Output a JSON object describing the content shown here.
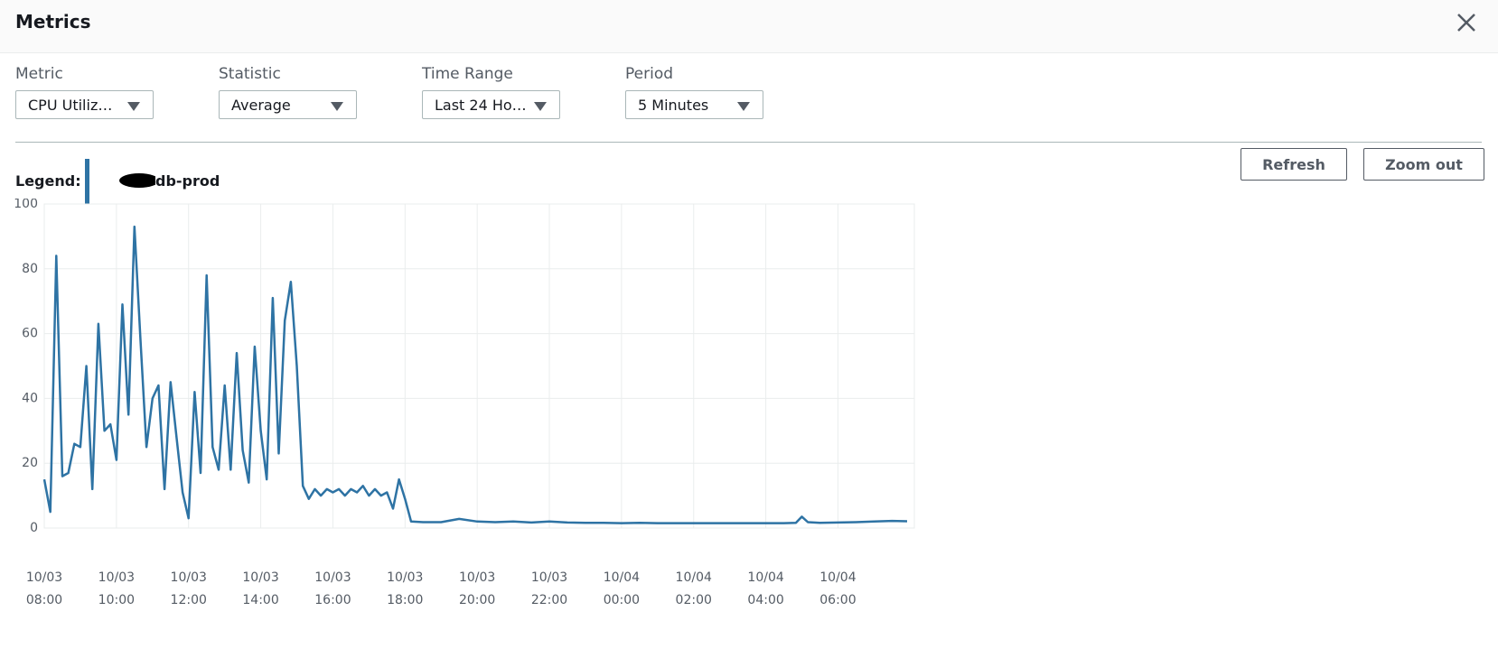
{
  "header": {
    "title": "Metrics"
  },
  "controls": [
    {
      "label": "Metric",
      "value": "CPU Utiliz…"
    },
    {
      "label": "Statistic",
      "value": "Average"
    },
    {
      "label": "Time Range",
      "value": "Last 24 Ho…"
    },
    {
      "label": "Period",
      "value": "5 Minutes"
    }
  ],
  "buttons": [
    "Refresh",
    "Zoom out"
  ],
  "legend_label": "Legend:",
  "chart_data": {
    "type": "line",
    "x": [
      "10/03 08:00",
      "10/03 08:10",
      "10/03 08:20",
      "10/03 08:30",
      "10/03 08:40",
      "10/03 08:50",
      "10/03 09:00",
      "10/03 09:10",
      "10/03 09:20",
      "10/03 09:30",
      "10/03 09:40",
      "10/03 09:50",
      "10/03 10:00",
      "10/03 10:10",
      "10/03 10:20",
      "10/03 10:30",
      "10/03 10:40",
      "10/03 10:50",
      "10/03 11:00",
      "10/03 11:10",
      "10/03 11:20",
      "10/03 11:30",
      "10/03 11:40",
      "10/03 11:50",
      "10/03 12:00",
      "10/03 12:10",
      "10/03 12:20",
      "10/03 12:30",
      "10/03 12:40",
      "10/03 12:50",
      "10/03 13:00",
      "10/03 13:10",
      "10/03 13:20",
      "10/03 13:30",
      "10/03 13:40",
      "10/03 13:50",
      "10/03 14:00",
      "10/03 14:10",
      "10/03 14:20",
      "10/03 14:30",
      "10/03 14:40",
      "10/03 14:50",
      "10/03 15:00",
      "10/03 15:10",
      "10/03 15:20",
      "10/03 15:30",
      "10/03 15:40",
      "10/03 15:50",
      "10/03 16:00",
      "10/03 16:10",
      "10/03 16:20",
      "10/03 16:30",
      "10/03 16:40",
      "10/03 16:50",
      "10/03 17:00",
      "10/03 17:10",
      "10/03 17:20",
      "10/03 17:30",
      "10/03 17:40",
      "10/03 17:50",
      "10/03 18:00",
      "10/03 18:10",
      "10/03 18:30",
      "10/03 19:00",
      "10/03 19:30",
      "10/03 20:00",
      "10/03 20:30",
      "10/03 21:00",
      "10/03 21:30",
      "10/03 22:00",
      "10/03 22:30",
      "10/03 23:00",
      "10/03 23:30",
      "10/04 00:00",
      "10/04 00:30",
      "10/04 01:00",
      "10/04 01:30",
      "10/04 02:00",
      "10/04 02:30",
      "10/04 03:00",
      "10/04 03:30",
      "10/04 04:00",
      "10/04 04:30",
      "10/04 04:50",
      "10/04 05:00",
      "10/04 05:10",
      "10/04 05:30",
      "10/04 06:00",
      "10/04 06:30",
      "10/04 07:00",
      "10/04 07:30",
      "10/04 07:55"
    ],
    "series": [
      {
        "name": "db-prod",
        "color": "#2e73a4",
        "values": [
          15,
          5,
          84,
          16,
          17,
          26,
          25,
          50,
          12,
          63,
          30,
          32,
          21,
          69,
          35,
          93,
          58,
          25,
          40,
          44,
          12,
          45,
          28,
          11,
          3,
          42,
          17,
          78,
          25,
          18,
          44,
          18,
          54,
          24,
          14,
          56,
          30,
          15,
          71,
          23,
          64,
          76,
          50,
          13,
          9,
          12,
          10,
          12,
          11,
          12,
          10,
          12,
          11,
          13,
          10,
          12,
          10,
          11,
          6,
          15,
          9,
          2,
          1.8,
          1.8,
          2.8,
          2,
          1.8,
          2,
          1.7,
          2,
          1.7,
          1.6,
          1.6,
          1.5,
          1.6,
          1.5,
          1.5,
          1.5,
          1.5,
          1.5,
          1.5,
          1.5,
          1.5,
          1.6,
          3.5,
          1.8,
          1.6,
          1.7,
          1.8,
          2,
          2.2,
          2.1
        ]
      }
    ],
    "ylim": [
      0,
      100
    ],
    "yticks": [
      0,
      20,
      40,
      60,
      80,
      100
    ],
    "xlim": [
      "10/03 08:00",
      "10/04 07:55"
    ],
    "xticks": [
      "10/03 08:00",
      "10/03 10:00",
      "10/03 12:00",
      "10/03 14:00",
      "10/03 16:00",
      "10/03 18:00",
      "10/03 20:00",
      "10/03 22:00",
      "10/04 00:00",
      "10/04 02:00",
      "10/04 04:00",
      "10/04 06:00"
    ],
    "grid": true
  }
}
